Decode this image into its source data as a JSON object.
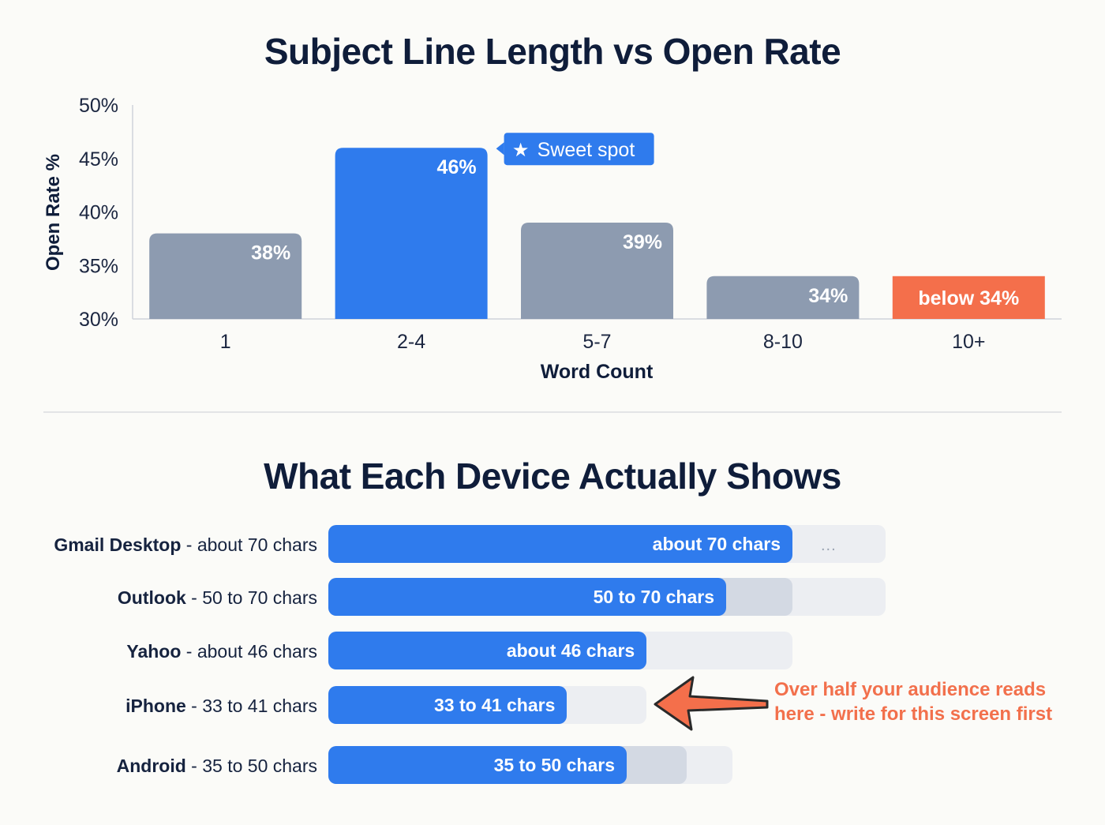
{
  "colors": {
    "title": "#0f1d3a",
    "bar_default": "#8d9bb0",
    "bar_highlight": "#2f7bed",
    "bar_warning": "#f46f4b",
    "annotation": "#f2704c",
    "track": "#eceef2",
    "range": "#d3d9e3"
  },
  "chart_data": {
    "type": "bar",
    "title": "Subject Line Length vs Open Rate",
    "xlabel": "Word Count",
    "ylabel": "Open Rate %",
    "ylim": [
      30,
      50
    ],
    "yticks": [
      "30%",
      "35%",
      "40%",
      "45%",
      "50%"
    ],
    "categories": [
      "1",
      "2-4",
      "5-7",
      "8-10",
      "10+"
    ],
    "values": [
      38,
      46,
      39,
      34,
      34
    ],
    "labels": [
      "38%",
      "46%",
      "39%",
      "34%",
      "below 34%"
    ],
    "highlight_index": 1,
    "warning_index": 4,
    "callout": {
      "icon": "star-icon",
      "text": "Sweet spot"
    },
    "grid": false
  },
  "devices": {
    "title": "What Each Device Actually Shows",
    "rows": [
      {
        "name": "Gmail Desktop",
        "desc": "about 70 chars",
        "bar_label": "about 70 chars",
        "value": 70,
        "range_max": 70,
        "track_max": 84,
        "overflow": "..."
      },
      {
        "name": "Outlook",
        "desc": "50 to 70 chars",
        "bar_label": "50 to 70 chars",
        "value": 60,
        "range_max": 70,
        "track_max": 84
      },
      {
        "name": "Yahoo",
        "desc": "about 46 chars",
        "bar_label": "about 46 chars",
        "value": 48,
        "range_max": 48,
        "track_max": 70
      },
      {
        "name": "iPhone",
        "desc": "33 to 41 chars",
        "bar_label": "33 to 41 chars",
        "value": 36,
        "range_max": 36,
        "track_max": 48
      },
      {
        "name": "Android",
        "desc": "35 to 50 chars",
        "bar_label": "35 to 50 chars",
        "value": 45,
        "range_max": 54,
        "track_max": 61
      }
    ],
    "annotation": "Over half your audience reads here - write for this screen first"
  }
}
